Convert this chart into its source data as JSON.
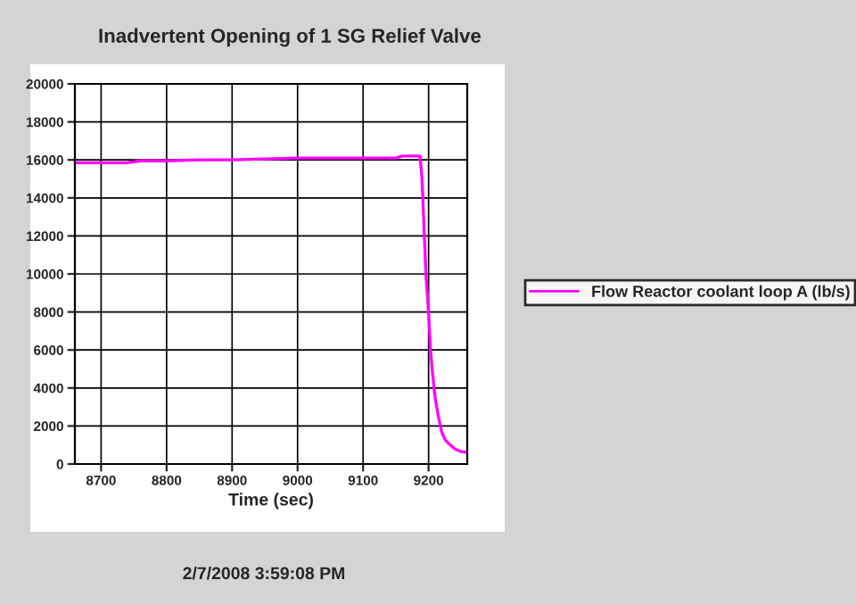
{
  "chart_data": {
    "type": "line",
    "title": "Inadvertent Opening of 1 SG Relief Valve",
    "xlabel": "Time (sec)",
    "annotations": [
      "2/7/2008 3:59:08 PM"
    ],
    "x": [
      8660,
      8700,
      8740,
      8760,
      8800,
      8850,
      8900,
      8950,
      9000,
      9050,
      9100,
      9150,
      9160,
      9187,
      9190,
      9193,
      9196,
      9200,
      9203,
      9206,
      9210,
      9215,
      9220,
      9225,
      9230,
      9240,
      9250,
      9259
    ],
    "series": [
      {
        "name": "Flow Reactor coolant loop A (lb/s)",
        "color": "#ff00ff",
        "values": [
          15850,
          15850,
          15850,
          15950,
          15950,
          16000,
          16000,
          16050,
          16100,
          16100,
          16100,
          16100,
          16200,
          16200,
          15000,
          12500,
          10000,
          8000,
          6000,
          4800,
          3500,
          2500,
          1700,
          1300,
          1100,
          800,
          650,
          600
        ]
      }
    ],
    "xlim": [
      8660,
      9259
    ],
    "xticks": [
      8700,
      8800,
      8900,
      9000,
      9100,
      9200
    ],
    "ylim": [
      0,
      20000
    ],
    "yticks": [
      0,
      2000,
      4000,
      6000,
      8000,
      10000,
      12000,
      14000,
      16000,
      18000,
      20000
    ],
    "grid": true,
    "legend": "right",
    "line_style": "solid"
  }
}
